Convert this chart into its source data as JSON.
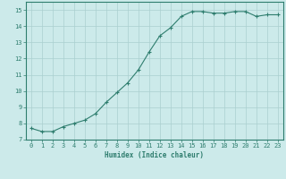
{
  "x": [
    0,
    1,
    2,
    3,
    4,
    5,
    6,
    7,
    8,
    9,
    10,
    11,
    12,
    13,
    14,
    15,
    16,
    17,
    18,
    19,
    20,
    21,
    22,
    23
  ],
  "y": [
    7.7,
    7.5,
    7.5,
    7.8,
    8.0,
    8.2,
    8.6,
    9.3,
    9.9,
    10.5,
    11.3,
    12.4,
    13.4,
    13.9,
    14.6,
    14.9,
    14.9,
    14.8,
    14.8,
    14.9,
    14.9,
    14.6,
    14.7,
    14.7
  ],
  "line_color": "#2e7d6e",
  "marker": "+",
  "marker_size": 3,
  "marker_linewidth": 0.8,
  "line_width": 0.8,
  "bg_color": "#cceaea",
  "grid_color": "#aacfcf",
  "axis_color": "#2e7d6e",
  "tick_color": "#2e7d6e",
  "xlabel": "Humidex (Indice chaleur)",
  "xlabel_color": "#2e7d6e",
  "xlabel_fontsize": 5.5,
  "tick_fontsize": 5.0,
  "ylim": [
    7,
    15.5
  ],
  "xlim": [
    -0.5,
    23.5
  ],
  "yticks": [
    7,
    8,
    9,
    10,
    11,
    12,
    13,
    14,
    15
  ],
  "xticks": [
    0,
    1,
    2,
    3,
    4,
    5,
    6,
    7,
    8,
    9,
    10,
    11,
    12,
    13,
    14,
    15,
    16,
    17,
    18,
    19,
    20,
    21,
    22,
    23
  ]
}
